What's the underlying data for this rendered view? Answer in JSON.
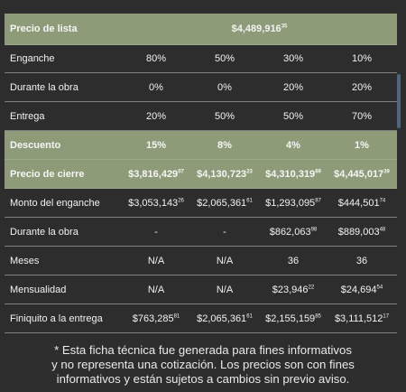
{
  "table": {
    "list_price": {
      "label": "Precio de lista",
      "whole": "$4,489,916",
      "dec": "35"
    },
    "rows": [
      {
        "label": "Enganche",
        "values": [
          "80%",
          "50%",
          "30%",
          "10%"
        ]
      },
      {
        "label": "Durante la obra",
        "values": [
          "0%",
          "0%",
          "20%",
          "20%"
        ]
      },
      {
        "label": "Entrega",
        "values": [
          "20%",
          "50%",
          "50%",
          "70%"
        ]
      }
    ],
    "discount": {
      "label": "Descuento",
      "values": [
        "15%",
        "8%",
        "4%",
        "1%"
      ]
    },
    "closing_price": {
      "label": "Precio de cierre",
      "values": [
        {
          "whole": "$3,816,429",
          "dec": "07"
        },
        {
          "whole": "$4,130,723",
          "dec": "23"
        },
        {
          "whole": "$4,310,319",
          "dec": "69"
        },
        {
          "whole": "$4,445,017",
          "dec": "39"
        }
      ]
    },
    "down_payment_amount": {
      "label": "Monto del enganche",
      "values": [
        {
          "whole": "$3,053,143",
          "dec": "26"
        },
        {
          "whole": "$2,065,361",
          "dec": "61"
        },
        {
          "whole": "$1,293,095",
          "dec": "87"
        },
        {
          "whole": "$444,501",
          "dec": "74"
        }
      ]
    },
    "during_construction_amount": {
      "label": "Durante la obra",
      "values": [
        {
          "whole": "-",
          "dec": ""
        },
        {
          "whole": "-",
          "dec": ""
        },
        {
          "whole": "$862,063",
          "dec": "98"
        },
        {
          "whole": "$889,003",
          "dec": "48"
        }
      ]
    },
    "months": {
      "label": "Meses",
      "values": [
        "N/A",
        "N/A",
        "36",
        "36"
      ]
    },
    "monthly": {
      "label": "Mensualidad",
      "values": [
        {
          "whole": "N/A",
          "dec": ""
        },
        {
          "whole": "N/A",
          "dec": ""
        },
        {
          "whole": "$23,946",
          "dec": "22"
        },
        {
          "whole": "$24,694",
          "dec": "54"
        }
      ]
    },
    "settlement": {
      "label": "Finiquito a la entrega",
      "values": [
        {
          "whole": "$763,285",
          "dec": "81"
        },
        {
          "whole": "$2,065,361",
          "dec": "61"
        },
        {
          "whole": "$2,155,159",
          "dec": "85"
        },
        {
          "whole": "$3,111,512",
          "dec": "17"
        }
      ]
    }
  },
  "note": {
    "line1": "* Esta ficha técnica fue generada para fines informativos",
    "line2": "y no representa una cotización. Los precios son con fines",
    "line3": "informativos y están sujetos a cambios sin previo aviso."
  }
}
